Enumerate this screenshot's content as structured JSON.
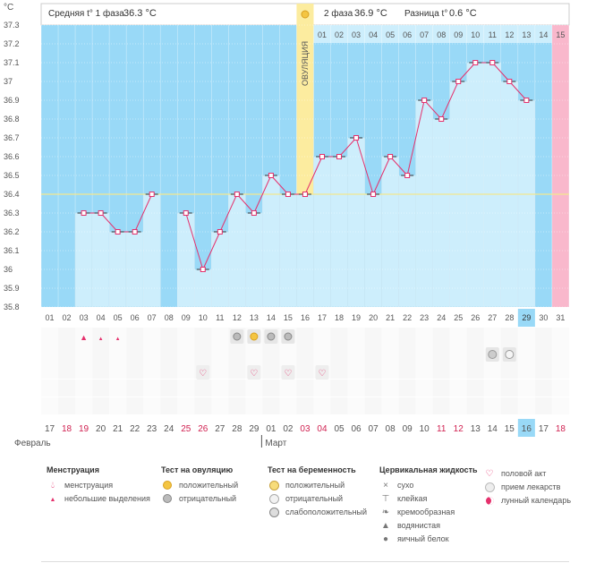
{
  "header": {
    "phase1_label": "Средняя t° 1 фаза",
    "phase1_value": "36.3 °C",
    "phase2_label": "2 фаза",
    "phase2_value": "36.9 °C",
    "diff_label": "Разница t°",
    "diff_value": "0.6 °C",
    "ovulation_label": "ОВУЛЯЦИЯ"
  },
  "chart_data": {
    "type": "line",
    "ylabel": "°C",
    "ylim": [
      35.8,
      37.3
    ],
    "yticks": [
      "37.3",
      "37.2",
      "37.1",
      "37",
      "36.9",
      "36.8",
      "36.7",
      "36.6",
      "36.5",
      "36.4",
      "36.3",
      "36.2",
      "36.1",
      "36",
      "35.9",
      "35.8"
    ],
    "coverline": 36.4,
    "cycle_days": [
      "01",
      "02",
      "03",
      "04",
      "05",
      "06",
      "07",
      "08",
      "09",
      "10",
      "11",
      "12",
      "13",
      "14",
      "15",
      "16",
      "17",
      "18",
      "19",
      "20",
      "21",
      "22",
      "23",
      "24",
      "25",
      "26",
      "27",
      "28",
      "29",
      "30",
      "31"
    ],
    "cycle_days_red": [
      "29"
    ],
    "phase2_days": [
      "01",
      "02",
      "03",
      "04",
      "05",
      "06",
      "07",
      "08",
      "09",
      "10",
      "11",
      "12",
      "13",
      "14",
      "15"
    ],
    "series": [
      {
        "values": [
          null,
          null,
          36.3,
          36.3,
          36.2,
          36.2,
          36.4,
          null,
          36.3,
          36.0,
          36.2,
          36.4,
          36.3,
          36.5,
          36.4,
          36.4,
          36.6,
          36.6,
          36.7,
          36.4,
          36.6,
          36.5,
          36.9,
          36.8,
          37.0,
          37.1,
          37.1,
          37.0,
          36.9,
          null,
          null
        ]
      }
    ],
    "calendar_dates": [
      "17",
      "18",
      "19",
      "20",
      "21",
      "22",
      "23",
      "24",
      "25",
      "26",
      "27",
      "28",
      "29",
      "01",
      "02",
      "03",
      "04",
      "05",
      "06",
      "07",
      "08",
      "09",
      "10",
      "11",
      "12",
      "13",
      "14",
      "15",
      "16",
      "17",
      "18"
    ],
    "calendar_dates_red": [
      1,
      2,
      8,
      9,
      15,
      16,
      23,
      24,
      30
    ],
    "months": [
      "Февраль",
      "Март"
    ],
    "today_calendar_day": "16"
  },
  "legend": {
    "menstruation": {
      "title": "Менструация",
      "items": [
        "менструация",
        "небольшие выделения"
      ]
    },
    "ovulation_test": {
      "title": "Тест на овуляцию",
      "items": [
        "положительный",
        "отрицательный"
      ]
    },
    "pregnancy_test": {
      "title": "Тест на беременность",
      "items": [
        "положительный",
        "отрицательный",
        "слабоположительный"
      ]
    },
    "cervical_fluid": {
      "title": "Цервикальная жидкость",
      "items": [
        "сухо",
        "клейкая",
        "кремообразная",
        "водянистая",
        "яичный белок"
      ]
    },
    "other": {
      "items": [
        "половой акт",
        "прием лекарств",
        "лунный календарь"
      ]
    }
  },
  "colors": {
    "plot_bg": "#99d9f7",
    "bar_fill": "#cdeefc",
    "line": "#e5306c",
    "ovulation": "#fcec9f",
    "menstr_day": "#f9b8cc",
    "today": "#99d9f7"
  }
}
